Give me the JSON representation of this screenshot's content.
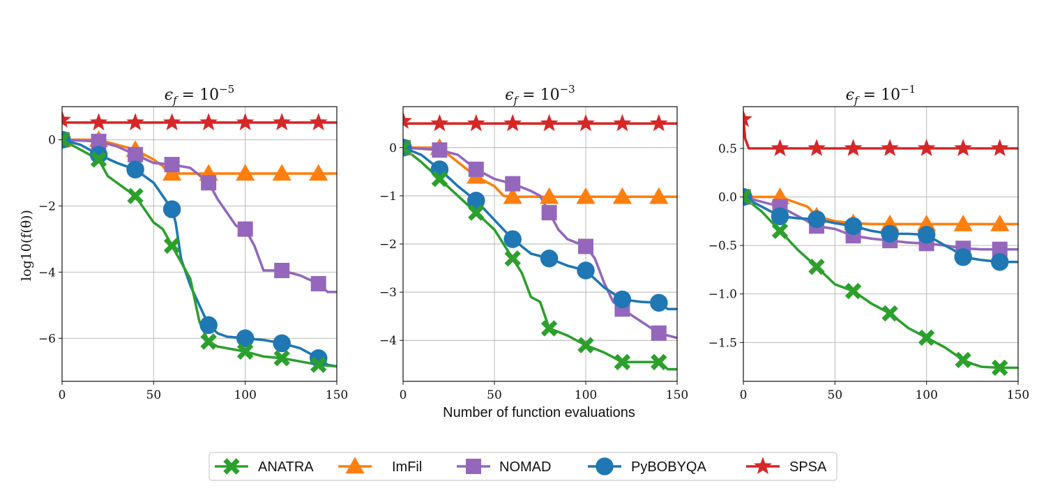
{
  "chart_data": {
    "type": "line",
    "xlabel": "Number of function evaluations",
    "ylabel": "log10(f(θ))",
    "xlim": [
      0,
      150
    ],
    "xticks": [
      0,
      50,
      100,
      150
    ],
    "grid": true,
    "legend_position": "bottom-center",
    "series_styles": [
      {
        "name": "ANATRA",
        "color": "#2ca02c",
        "marker": "X"
      },
      {
        "name": "ImFil",
        "color": "#ff7f0e",
        "marker": "triangle"
      },
      {
        "name": "NOMAD",
        "color": "#9467bd",
        "marker": "square"
      },
      {
        "name": "PyBOBYQA",
        "color": "#1f77b4",
        "marker": "circle"
      },
      {
        "name": "SPSA",
        "color": "#d62728",
        "marker": "star"
      }
    ],
    "panels": [
      {
        "title": "ε_f = 10^-5",
        "title_base": "ϵ",
        "title_sub": "f",
        "title_mid": " = 10",
        "title_sup": "−5",
        "ylim": [
          -7.3,
          1.0
        ],
        "yticks": [
          0,
          -2,
          -4,
          -6
        ],
        "ytick_labels": [
          "0",
          "−2",
          "−4",
          "−6"
        ],
        "series": [
          {
            "name": "SPSA",
            "x": [
              0,
              1,
              150
            ],
            "y": [
              0.6,
              0.52,
              0.52
            ],
            "markers_x": [
              0,
              20,
              40,
              60,
              80,
              100,
              120,
              140
            ]
          },
          {
            "name": "ImFil",
            "x": [
              0,
              20,
              40,
              50,
              55,
              58,
              60,
              150
            ],
            "y": [
              0,
              0,
              -0.3,
              -0.6,
              -0.8,
              -1.0,
              -1.02,
              -1.02
            ],
            "markers_x": [
              0,
              20,
              40,
              60,
              80,
              100,
              120,
              140
            ]
          },
          {
            "name": "NOMAD",
            "x": [
              0,
              20,
              30,
              40,
              50,
              60,
              70,
              80,
              85,
              90,
              95,
              100,
              105,
              110,
              120,
              130,
              140,
              145,
              150
            ],
            "y": [
              0,
              -0.05,
              -0.2,
              -0.45,
              -0.7,
              -0.75,
              -0.85,
              -1.3,
              -1.8,
              -2.2,
              -2.6,
              -2.7,
              -3.2,
              -3.95,
              -3.95,
              -4.1,
              -4.35,
              -4.6,
              -4.6
            ],
            "markers_x": [
              0,
              20,
              40,
              60,
              80,
              100,
              120,
              140
            ]
          },
          {
            "name": "PyBOBYQA",
            "x": [
              0,
              10,
              20,
              30,
              40,
              50,
              60,
              62,
              65,
              70,
              75,
              80,
              85,
              90,
              100,
              110,
              120,
              130,
              140,
              145,
              150
            ],
            "y": [
              0,
              -0.15,
              -0.45,
              -0.7,
              -0.9,
              -1.3,
              -2.1,
              -2.5,
              -3.6,
              -4.4,
              -5.0,
              -5.6,
              -5.85,
              -5.95,
              -6.0,
              -6.05,
              -6.15,
              -6.3,
              -6.6,
              -6.8,
              -6.85
            ],
            "markers_x": [
              0,
              20,
              40,
              60,
              80,
              100,
              120,
              140
            ]
          },
          {
            "name": "ANATRA",
            "x": [
              0,
              10,
              20,
              25,
              30,
              40,
              45,
              50,
              55,
              60,
              65,
              70,
              75,
              80,
              85,
              90,
              100,
              110,
              120,
              130,
              140,
              150
            ],
            "y": [
              0,
              -0.3,
              -0.6,
              -1.1,
              -1.3,
              -1.7,
              -2.1,
              -2.5,
              -2.7,
              -3.2,
              -3.7,
              -4.2,
              -5.5,
              -6.1,
              -6.25,
              -6.3,
              -6.4,
              -6.55,
              -6.6,
              -6.7,
              -6.8,
              -6.85
            ],
            "markers_x": [
              0,
              20,
              40,
              60,
              80,
              100,
              120,
              140
            ]
          }
        ]
      },
      {
        "title": "ε_f = 10^-3",
        "title_base": "ϵ",
        "title_sub": "f",
        "title_mid": " = 10",
        "title_sup": "−3",
        "ylim": [
          -4.85,
          0.85
        ],
        "yticks": [
          0,
          -1,
          -2,
          -3,
          -4
        ],
        "ytick_labels": [
          "0",
          "−1",
          "−2",
          "−3",
          "−4"
        ],
        "series": [
          {
            "name": "SPSA",
            "x": [
              0,
              1,
              150
            ],
            "y": [
              0.55,
              0.5,
              0.5
            ],
            "markers_x": [
              0,
              20,
              40,
              60,
              80,
              100,
              120,
              140
            ]
          },
          {
            "name": "ImFil",
            "x": [
              0,
              20,
              30,
              40,
              50,
              55,
              60,
              150
            ],
            "y": [
              0,
              0,
              -0.3,
              -0.6,
              -0.8,
              -1.0,
              -1.02,
              -1.02
            ],
            "markers_x": [
              0,
              20,
              40,
              60,
              80,
              100,
              120,
              140
            ]
          },
          {
            "name": "NOMAD",
            "x": [
              0,
              20,
              30,
              40,
              50,
              60,
              70,
              75,
              80,
              85,
              90,
              100,
              105,
              110,
              115,
              120,
              130,
              140,
              150
            ],
            "y": [
              0,
              -0.05,
              -0.15,
              -0.45,
              -0.65,
              -0.75,
              -0.9,
              -1.0,
              -1.35,
              -1.7,
              -1.9,
              -2.05,
              -2.3,
              -2.8,
              -3.2,
              -3.35,
              -3.6,
              -3.85,
              -3.95
            ],
            "markers_x": [
              0,
              20,
              40,
              60,
              80,
              100,
              120,
              140
            ]
          },
          {
            "name": "PyBOBYQA",
            "x": [
              0,
              10,
              20,
              30,
              40,
              50,
              60,
              70,
              80,
              90,
              100,
              110,
              120,
              130,
              140,
              145,
              150
            ],
            "y": [
              0,
              -0.15,
              -0.45,
              -0.8,
              -1.1,
              -1.5,
              -1.9,
              -2.2,
              -2.3,
              -2.45,
              -2.55,
              -2.9,
              -3.15,
              -3.2,
              -3.22,
              -3.35,
              -3.35
            ],
            "markers_x": [
              0,
              20,
              40,
              60,
              80,
              100,
              120,
              140
            ]
          },
          {
            "name": "ANATRA",
            "x": [
              0,
              10,
              20,
              30,
              40,
              50,
              55,
              60,
              65,
              70,
              75,
              80,
              90,
              100,
              110,
              120,
              130,
              140,
              145,
              150
            ],
            "y": [
              0,
              -0.3,
              -0.65,
              -1.0,
              -1.35,
              -1.7,
              -2.0,
              -2.3,
              -2.6,
              -3.1,
              -3.2,
              -3.75,
              -3.9,
              -4.1,
              -4.25,
              -4.45,
              -4.45,
              -4.45,
              -4.6,
              -4.6
            ],
            "markers_x": [
              0,
              20,
              40,
              60,
              80,
              100,
              120,
              140
            ]
          }
        ]
      },
      {
        "title": "ε_f = 10^-1",
        "title_base": "ϵ",
        "title_sub": "f",
        "title_mid": " = 10",
        "title_sup": "−1",
        "ylim": [
          -1.9,
          0.93
        ],
        "yticks": [
          0.5,
          0.0,
          -0.5,
          -1.0,
          -1.5
        ],
        "ytick_labels": [
          "0.5",
          "0.0",
          "−0.5",
          "−1.0",
          "−1.5"
        ],
        "series": [
          {
            "name": "SPSA",
            "x": [
              0,
              1,
              3,
              150
            ],
            "y": [
              0.8,
              0.6,
              0.5,
              0.5
            ],
            "markers_x": [
              0,
              20,
              40,
              60,
              80,
              100,
              120,
              140
            ]
          },
          {
            "name": "ImFil",
            "x": [
              0,
              20,
              35,
              40,
              50,
              60,
              70,
              80,
              150
            ],
            "y": [
              0,
              0,
              -0.1,
              -0.2,
              -0.25,
              -0.27,
              -0.28,
              -0.28,
              -0.28
            ],
            "markers_x": [
              0,
              20,
              40,
              60,
              80,
              100,
              120,
              140
            ]
          },
          {
            "name": "NOMAD",
            "x": [
              0,
              10,
              20,
              30,
              40,
              50,
              60,
              70,
              80,
              90,
              100,
              110,
              120,
              130,
              140,
              150
            ],
            "y": [
              0,
              -0.05,
              -0.1,
              -0.2,
              -0.3,
              -0.33,
              -0.4,
              -0.43,
              -0.45,
              -0.47,
              -0.48,
              -0.5,
              -0.53,
              -0.54,
              -0.54,
              -0.54
            ],
            "markers_x": [
              0,
              20,
              40,
              60,
              80,
              100,
              120,
              140
            ]
          },
          {
            "name": "PyBOBYQA",
            "x": [
              0,
              10,
              20,
              30,
              40,
              50,
              60,
              70,
              80,
              90,
              100,
              110,
              115,
              120,
              130,
              140,
              150
            ],
            "y": [
              0,
              -0.1,
              -0.2,
              -0.22,
              -0.23,
              -0.27,
              -0.3,
              -0.35,
              -0.38,
              -0.38,
              -0.39,
              -0.5,
              -0.55,
              -0.62,
              -0.65,
              -0.67,
              -0.67
            ],
            "markers_x": [
              0,
              20,
              40,
              60,
              80,
              100,
              120,
              140
            ]
          },
          {
            "name": "ANATRA",
            "x": [
              0,
              10,
              20,
              30,
              40,
              50,
              60,
              70,
              80,
              90,
              100,
              110,
              120,
              125,
              130,
              140,
              150
            ],
            "y": [
              0,
              -0.15,
              -0.35,
              -0.55,
              -0.72,
              -0.9,
              -0.97,
              -1.1,
              -1.2,
              -1.35,
              -1.45,
              -1.55,
              -1.68,
              -1.72,
              -1.75,
              -1.76,
              -1.76
            ],
            "markers_x": [
              0,
              20,
              40,
              60,
              80,
              100,
              120,
              140
            ]
          }
        ]
      }
    ]
  }
}
